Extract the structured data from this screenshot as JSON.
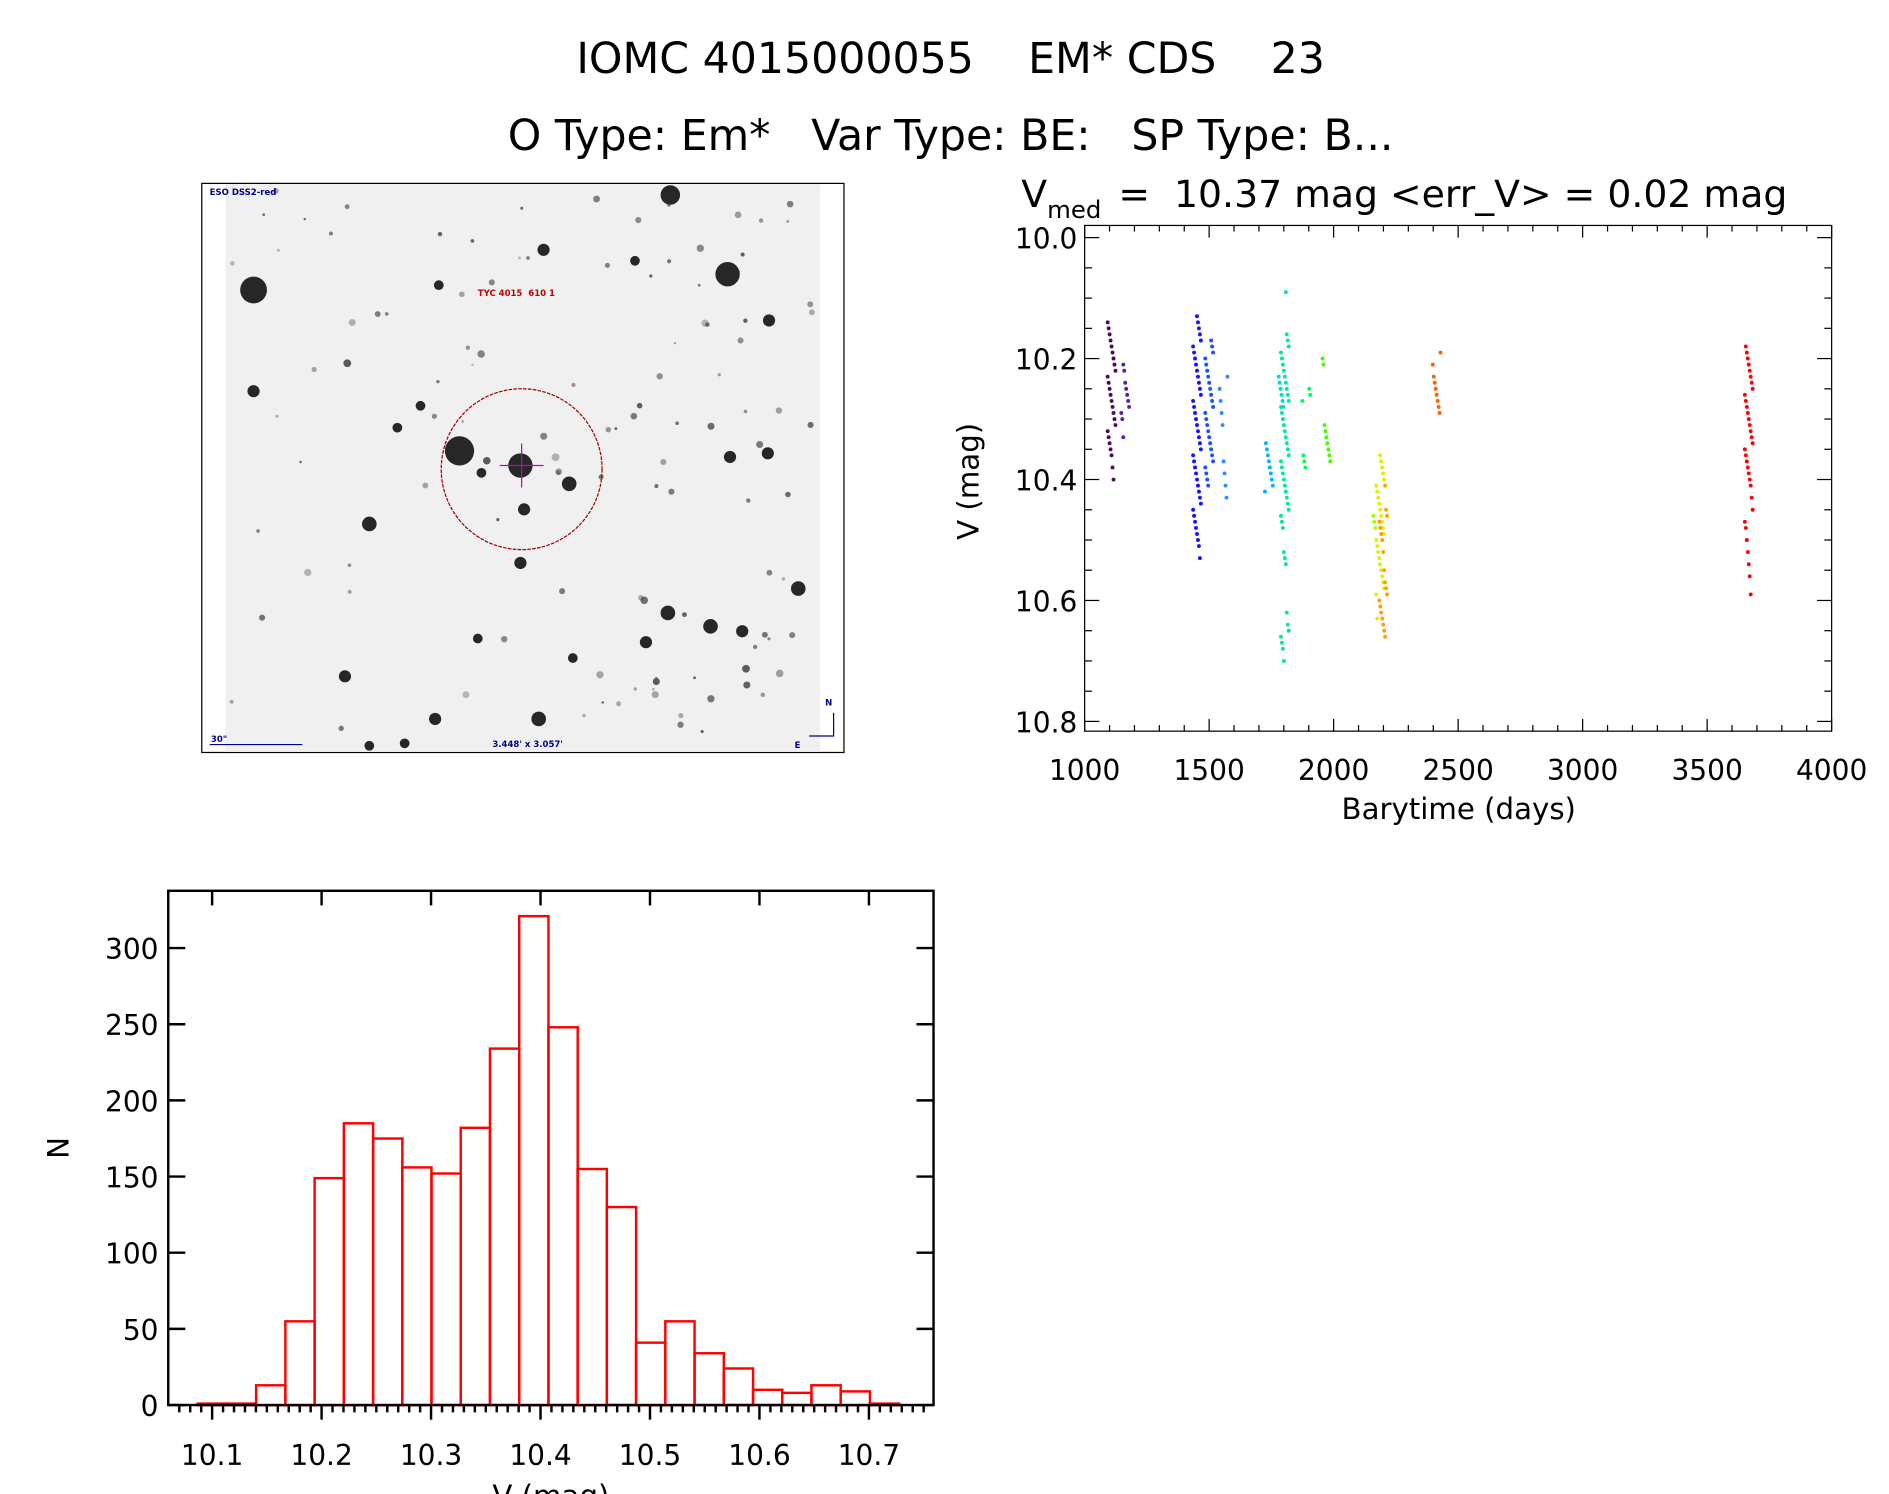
{
  "header": {
    "line1": "IOMC 4015000055    EM* CDS    23",
    "line2": "O Type: Em*   Var Type: BE:   SP Type: B..."
  },
  "image_panel": {
    "survey_label": "ESO DSS2-red",
    "target_label": "TYC 4015  610 1",
    "scale_label": "30\"",
    "field_size_label": "3.448' x 3.057'",
    "north_label": "N",
    "east_label": "E"
  },
  "chart_data": [
    {
      "type": "scatter",
      "title": {
        "v": "V",
        "sub": "med",
        "rest": "=  10.37 mag <err_V> = 0.02 mag"
      },
      "xlabel": "Barytime (days)",
      "ylabel": "V (mag)",
      "xlim": [
        1000,
        4000
      ],
      "ylim": [
        10.82,
        9.98
      ],
      "xticks": [
        "1000",
        "1500",
        "2000",
        "2500",
        "3000",
        "3500",
        "4000"
      ],
      "yticks": [
        "10.0",
        "10.2",
        "10.4",
        "10.6",
        "10.8"
      ],
      "groups": [
        {
          "x": 1108,
          "color": "#4b0a5f",
          "y": [
            10.14,
            10.15,
            10.16,
            10.17,
            10.18,
            10.19,
            10.2,
            10.21,
            10.22,
            10.23,
            10.24,
            10.25,
            10.26,
            10.27,
            10.28,
            10.29,
            10.3,
            10.31,
            10.32,
            10.33,
            10.34,
            10.35,
            10.36,
            10.38,
            10.4
          ]
        },
        {
          "x": 1163,
          "color": "#5a1ea8",
          "y": [
            10.21,
            10.22,
            10.24,
            10.25,
            10.26,
            10.27,
            10.28,
            10.29,
            10.3,
            10.33
          ]
        },
        {
          "x": 1451,
          "color": "#1414ff",
          "y": [
            10.13,
            10.14,
            10.15,
            10.16,
            10.17,
            10.18,
            10.19,
            10.2,
            10.21,
            10.22,
            10.23,
            10.24,
            10.25,
            10.26,
            10.27,
            10.28,
            10.29,
            10.3,
            10.31,
            10.32,
            10.33,
            10.34,
            10.35,
            10.36,
            10.37,
            10.38,
            10.39,
            10.4,
            10.41,
            10.42,
            10.43,
            10.44,
            10.45,
            10.46,
            10.47,
            10.48,
            10.49,
            10.5,
            10.51,
            10.53
          ]
        },
        {
          "x": 1500,
          "color": "#1e50ff",
          "y": [
            10.17,
            10.18,
            10.19,
            10.2,
            10.21,
            10.22,
            10.23,
            10.24,
            10.25,
            10.26,
            10.27,
            10.28,
            10.29,
            10.3,
            10.31,
            10.32,
            10.33,
            10.34,
            10.35,
            10.36,
            10.37,
            10.38,
            10.39,
            10.4,
            10.41
          ]
        },
        {
          "x": 1558,
          "color": "#2a8cff",
          "y": [
            10.23,
            10.25,
            10.27,
            10.29,
            10.31,
            10.37,
            10.39,
            10.41,
            10.43
          ]
        },
        {
          "x": 1740,
          "color": "#00b4ff",
          "y": [
            10.34,
            10.35,
            10.36,
            10.37,
            10.38,
            10.39,
            10.4,
            10.41,
            10.42
          ]
        },
        {
          "x": 1783,
          "color": "#00d8e8",
          "y": [
            10.23,
            10.24,
            10.25,
            10.26,
            10.27,
            10.28
          ]
        },
        {
          "x": 1804,
          "color": "#00e8a0",
          "y": [
            10.09,
            10.16,
            10.17,
            10.18,
            10.19,
            10.2,
            10.21,
            10.22,
            10.23,
            10.24,
            10.25,
            10.26,
            10.27,
            10.28,
            10.29,
            10.3,
            10.31,
            10.32,
            10.33,
            10.34,
            10.35,
            10.36,
            10.37,
            10.38,
            10.39,
            10.4,
            10.41,
            10.42,
            10.43,
            10.44,
            10.45,
            10.46,
            10.47,
            10.48,
            10.52,
            10.53,
            10.54,
            10.62,
            10.64,
            10.65,
            10.66,
            10.67,
            10.68,
            10.7
          ]
        },
        {
          "x": 1890,
          "color": "#00ff50",
          "y": [
            10.25,
            10.26,
            10.27,
            10.36,
            10.37,
            10.38
          ]
        },
        {
          "x": 1971,
          "color": "#40ff00",
          "y": [
            10.2,
            10.21,
            10.31,
            10.32,
            10.33,
            10.34,
            10.35,
            10.36,
            10.37
          ]
        },
        {
          "x": 2167,
          "color": "#a0ff00",
          "y": [
            10.46,
            10.47,
            10.48
          ]
        },
        {
          "x": 2187,
          "color": "#e0f000",
          "y": [
            10.36,
            10.37,
            10.38,
            10.39,
            10.4,
            10.41,
            10.42,
            10.43,
            10.44,
            10.45,
            10.46,
            10.47,
            10.48,
            10.49,
            10.5,
            10.51,
            10.52,
            10.53,
            10.54,
            10.55,
            10.56,
            10.57,
            10.58,
            10.59,
            10.63
          ]
        },
        {
          "x": 2199,
          "color": "#ffa000",
          "y": [
            10.41,
            10.45,
            10.46,
            10.47,
            10.48,
            10.49,
            10.5,
            10.52,
            10.55,
            10.57,
            10.58,
            10.59,
            10.6,
            10.61,
            10.62,
            10.63,
            10.64,
            10.65,
            10.66
          ]
        },
        {
          "x": 2414,
          "color": "#ff6000",
          "y": [
            10.19,
            10.21,
            10.23,
            10.24,
            10.25,
            10.26,
            10.27,
            10.28,
            10.29
          ]
        },
        {
          "x": 3667,
          "color": "#ff0000",
          "y": [
            10.18,
            10.19,
            10.2,
            10.21,
            10.22,
            10.23,
            10.24,
            10.25,
            10.26,
            10.27,
            10.28,
            10.29,
            10.3,
            10.31,
            10.32,
            10.33,
            10.34,
            10.35,
            10.36,
            10.37,
            10.38,
            10.39,
            10.4,
            10.41,
            10.43,
            10.45,
            10.47,
            10.48,
            10.5,
            10.52,
            10.54,
            10.56,
            10.59
          ]
        }
      ]
    },
    {
      "type": "bar",
      "subtype": "histogram",
      "xlabel": "V (mag)",
      "ylabel": "N",
      "xlim": [
        10.061,
        10.759
      ],
      "ylim": [
        0,
        337
      ],
      "xticks": [
        "10.1",
        "10.2",
        "10.3",
        "10.4",
        "10.5",
        "10.6",
        "10.7"
      ],
      "yticks": [
        "0",
        "50",
        "100",
        "150",
        "200",
        "250",
        "300"
      ],
      "bin_start": 10.0868,
      "bin_width": 0.0267,
      "counts": [
        1,
        1,
        13,
        55,
        149,
        185,
        175,
        156,
        152,
        182,
        234,
        321,
        248,
        155,
        130,
        41,
        55,
        34,
        24,
        10,
        8,
        13,
        9,
        1
      ],
      "color": "#ff0000"
    }
  ]
}
